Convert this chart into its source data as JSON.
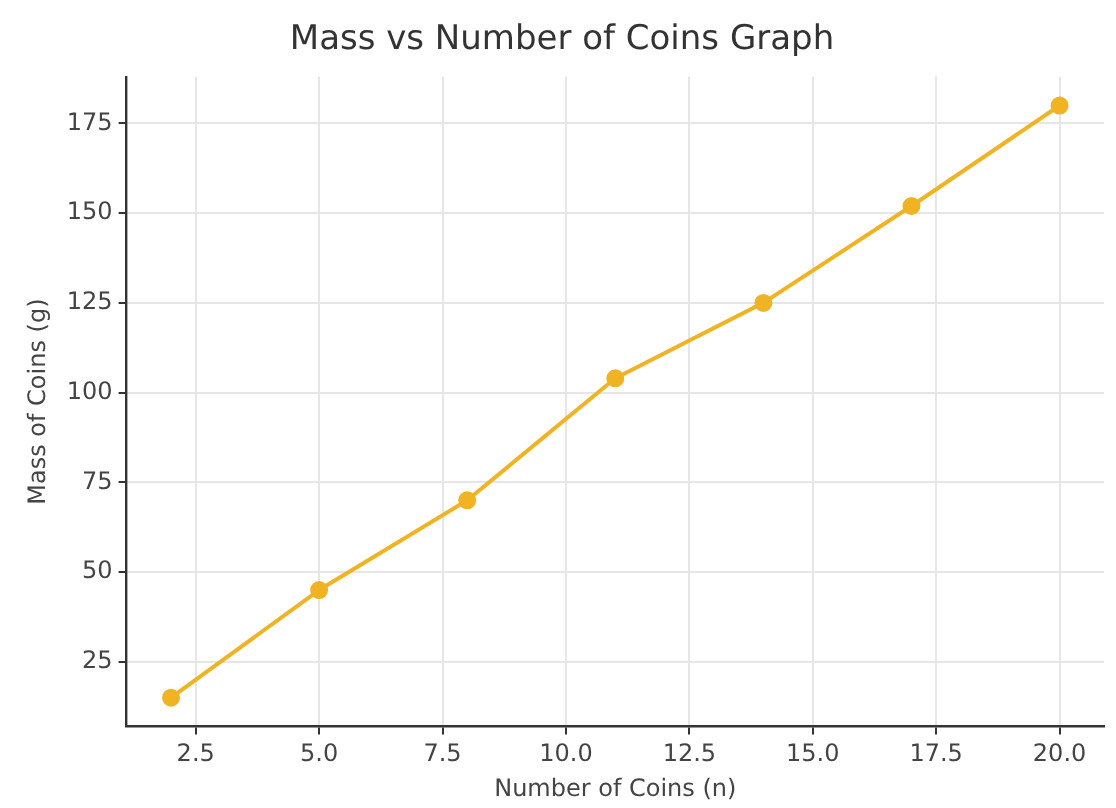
{
  "chart_data": {
    "type": "line",
    "title": "Mass vs Number of Coins Graph",
    "xlabel": "Number of Coins (n)",
    "ylabel": "Mass of Coins (g)",
    "x": [
      2,
      5,
      8,
      11,
      14,
      17,
      20
    ],
    "series": [
      {
        "color": "#f0b323",
        "values": [
          15,
          45,
          70,
          104,
          125,
          152,
          180
        ]
      }
    ],
    "xlim": [
      1.1,
      20.9
    ],
    "xticks": [
      {
        "value": 2.5,
        "label": "2.5"
      },
      {
        "value": 5,
        "label": "5.0"
      },
      {
        "value": 7.5,
        "label": "7.5"
      },
      {
        "value": 10,
        "label": "10.0"
      },
      {
        "value": 12.5,
        "label": "12.5"
      },
      {
        "value": 15,
        "label": "15.0"
      },
      {
        "value": 17.5,
        "label": "17.5"
      },
      {
        "value": 20,
        "label": "20.0"
      }
    ],
    "ylim": [
      7,
      188
    ],
    "yticks": [
      25,
      50,
      75,
      100,
      125,
      150,
      175
    ],
    "grid": true,
    "marker": "circle",
    "line_style": "solid",
    "legend": false
  }
}
